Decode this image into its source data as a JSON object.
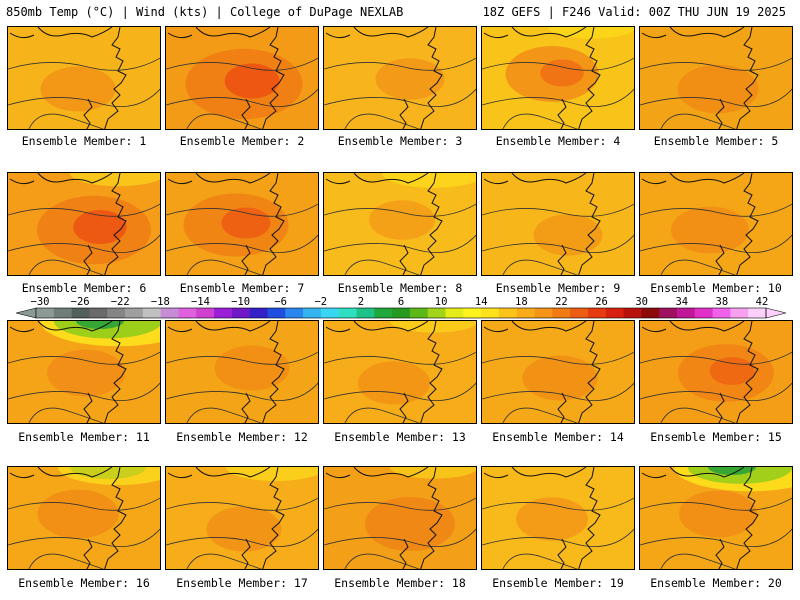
{
  "header": {
    "left": "850mb Temp (°C) | Wind (kts) | College of DuPage NEXLAB",
    "right": "18Z GEFS | F246 Valid: 00Z THU JUN 19 2025"
  },
  "panel_label_prefix": "Ensemble Member: ",
  "panels": [
    {
      "member": "1",
      "base": "#f6b41a",
      "hot": 0.25,
      "cold": 0
    },
    {
      "member": "2",
      "base": "#f39a16",
      "hot": 0.95,
      "cold": 0
    },
    {
      "member": "3",
      "base": "#f7b41c",
      "hot": 0.15,
      "cold": 0
    },
    {
      "member": "4",
      "base": "#f9c419",
      "hot": 0.55,
      "cold": 0.1
    },
    {
      "member": "5",
      "base": "#f3a316",
      "hot": 0.35,
      "cold": 0
    },
    {
      "member": "6",
      "base": "#f59c18",
      "hot": 0.9,
      "cold": 0.2
    },
    {
      "member": "7",
      "base": "#f4a117",
      "hot": 0.75,
      "cold": 0
    },
    {
      "member": "8",
      "base": "#f8bb1c",
      "hot": 0.1,
      "cold": 0.3
    },
    {
      "member": "9",
      "base": "#f7b71b",
      "hot": 0.15,
      "cold": 0
    },
    {
      "member": "10",
      "base": "#f4a617",
      "hot": 0.3,
      "cold": 0
    },
    {
      "member": "11",
      "base": "#f5a418",
      "hot": 0.3,
      "cold": 0.95
    },
    {
      "member": "12",
      "base": "#f4a517",
      "hot": 0.25,
      "cold": 0
    },
    {
      "member": "13",
      "base": "#f6ad19",
      "hot": 0.2,
      "cold": 0.1
    },
    {
      "member": "14",
      "base": "#f5a918",
      "hot": 0.25,
      "cold": 0
    },
    {
      "member": "15",
      "base": "#f49e17",
      "hot": 0.6,
      "cold": 0
    },
    {
      "member": "16",
      "base": "#f5a718",
      "hot": 0.35,
      "cold": 0.5
    },
    {
      "member": "17",
      "base": "#f6ad19",
      "hot": 0.25,
      "cold": 0.25
    },
    {
      "member": "18",
      "base": "#f39f17",
      "hot": 0.5,
      "cold": 0.1
    },
    {
      "member": "19",
      "base": "#f8b91b",
      "hot": 0.2,
      "cold": 0
    },
    {
      "member": "20",
      "base": "#f4a617",
      "hot": 0.3,
      "cold": 0.9
    }
  ],
  "colorbar": {
    "ticks": [
      "−30",
      "−26",
      "−22",
      "−18",
      "−14",
      "−10",
      "−6",
      "−2",
      "2",
      "6",
      "10",
      "14",
      "18",
      "22",
      "26",
      "30",
      "34",
      "38",
      "42"
    ],
    "colors": [
      "#8c9a94",
      "#6f7d78",
      "#535f5b",
      "#6a6a6a",
      "#858585",
      "#9f9f9f",
      "#c0c0c0",
      "#c78cd6",
      "#e060e0",
      "#d040d0",
      "#9c1fd8",
      "#6e18c8",
      "#3420c8",
      "#1f4fe0",
      "#2a86ee",
      "#35b4f2",
      "#38d6f0",
      "#2ee0c0",
      "#1fc38a",
      "#20a83c",
      "#269a20",
      "#5cb818",
      "#a2d41a",
      "#e4ec1a",
      "#fff31e",
      "#ffe01c",
      "#fcc41a",
      "#f9ac18",
      "#f59416",
      "#f17a14",
      "#ec5c12",
      "#e63a10",
      "#d8200e",
      "#b8120c",
      "#8c0a0a",
      "#a01060",
      "#c01898",
      "#e030c8",
      "#f060e8",
      "#f8a0f0",
      "#fcd0fa"
    ]
  }
}
